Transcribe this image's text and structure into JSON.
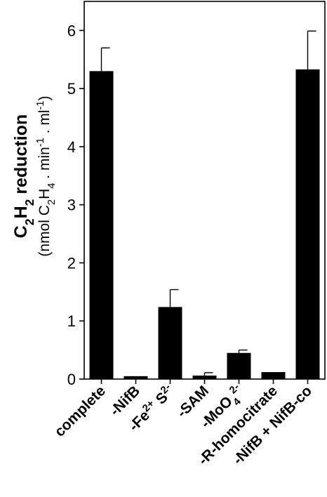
{
  "chart_data": {
    "type": "bar",
    "title": "",
    "xlabel": "",
    "ylabel": {
      "main": [
        {
          "t": "C",
          "sub": false
        },
        {
          "t": "2",
          "sub": true
        },
        {
          "t": "H",
          "sub": false
        },
        {
          "t": "2",
          "sub": true
        },
        {
          "t": " reduction",
          "sub": false
        }
      ],
      "unit": [
        {
          "t": "(nmol C",
          "sup": false,
          "sub": false
        },
        {
          "t": "2",
          "sub": true
        },
        {
          "t": "H",
          "sub": false
        },
        {
          "t": "4",
          "sub": true
        },
        {
          "t": " . min",
          "sub": false
        },
        {
          "t": "-1",
          "sup": true
        },
        {
          "t": " . ml",
          "sub": false
        },
        {
          "t": "-1",
          "sup": true
        },
        {
          "t": ")",
          "sub": false
        }
      ]
    },
    "ylim": [
      0,
      6.5
    ],
    "yticks": [
      0,
      1,
      2,
      3,
      4,
      5,
      6
    ],
    "categories": [
      [
        {
          "t": "complete"
        }
      ],
      [
        {
          "t": "-NifB"
        }
      ],
      [
        {
          "t": "-Fe"
        },
        {
          "t": "2+",
          "sup": true
        },
        {
          "t": " S"
        },
        {
          "t": "2-",
          "sup": true
        }
      ],
      [
        {
          "t": "-SAM"
        }
      ],
      [
        {
          "t": "-MoO"
        },
        {
          "t": "4",
          "sub": true
        },
        {
          "t": "2-",
          "sup": true
        }
      ],
      [
        {
          "t": "-R-homocitrate"
        }
      ],
      [
        {
          "t": "-NifB + NifB-co"
        }
      ]
    ],
    "values": [
      5.3,
      0.05,
      1.24,
      0.06,
      0.45,
      0.12,
      5.33
    ],
    "errors": [
      0.4,
      0.0,
      0.3,
      0.05,
      0.05,
      0.0,
      0.66
    ],
    "bar_color": "#000000",
    "grid": false
  }
}
